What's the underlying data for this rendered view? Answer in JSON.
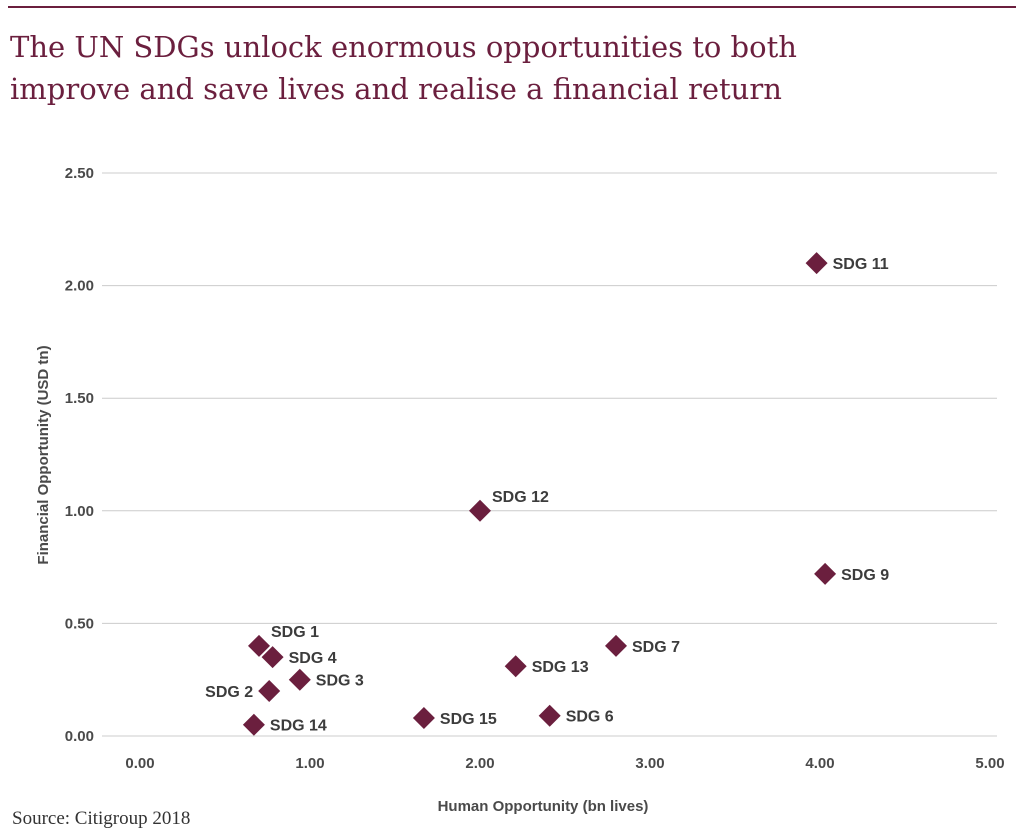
{
  "title_lines": [
    "The UN SDGs unlock enormous opportunities to both",
    "improve and save lives and realise a financial return"
  ],
  "source": "Source: Citigroup 2018",
  "colors": {
    "accent": "#6b1f3e",
    "grid": "#cccccc",
    "marker": "#6b1f3e"
  },
  "chart_data": {
    "type": "scatter",
    "title": "The UN SDGs unlock enormous opportunities to both improve and save lives and realise a financial return",
    "xlabel": "Human Opportunity (bn lives)",
    "ylabel": "Financial Opportunity (USD tn)",
    "xlim": [
      0,
      5
    ],
    "ylim": [
      0,
      2.5
    ],
    "x_ticks": [
      "0.00",
      "1.00",
      "2.00",
      "3.00",
      "4.00",
      "5.00"
    ],
    "y_ticks": [
      "0.00",
      "0.50",
      "1.00",
      "1.50",
      "2.00",
      "2.50"
    ],
    "grid": true,
    "marker": "diamond",
    "points": [
      {
        "label": "SDG 1",
        "x": 0.7,
        "y": 0.4,
        "label_side": "upper-right"
      },
      {
        "label": "SDG 4",
        "x": 0.78,
        "y": 0.35,
        "label_side": "right"
      },
      {
        "label": "SDG 3",
        "x": 0.94,
        "y": 0.25,
        "label_side": "right"
      },
      {
        "label": "SDG 2",
        "x": 0.76,
        "y": 0.2,
        "label_side": "left"
      },
      {
        "label": "SDG 14",
        "x": 0.67,
        "y": 0.05,
        "label_side": "right"
      },
      {
        "label": "SDG 15",
        "x": 1.67,
        "y": 0.08,
        "label_side": "right"
      },
      {
        "label": "SDG 12",
        "x": 2.0,
        "y": 1.0,
        "label_side": "upper-right"
      },
      {
        "label": "SDG 13",
        "x": 2.21,
        "y": 0.31,
        "label_side": "right"
      },
      {
        "label": "SDG 6",
        "x": 2.41,
        "y": 0.09,
        "label_side": "right"
      },
      {
        "label": "SDG 7",
        "x": 2.8,
        "y": 0.4,
        "label_side": "right"
      },
      {
        "label": "SDG 11",
        "x": 3.98,
        "y": 2.1,
        "label_side": "right"
      },
      {
        "label": "SDG 9",
        "x": 4.03,
        "y": 0.72,
        "label_side": "right"
      }
    ]
  }
}
